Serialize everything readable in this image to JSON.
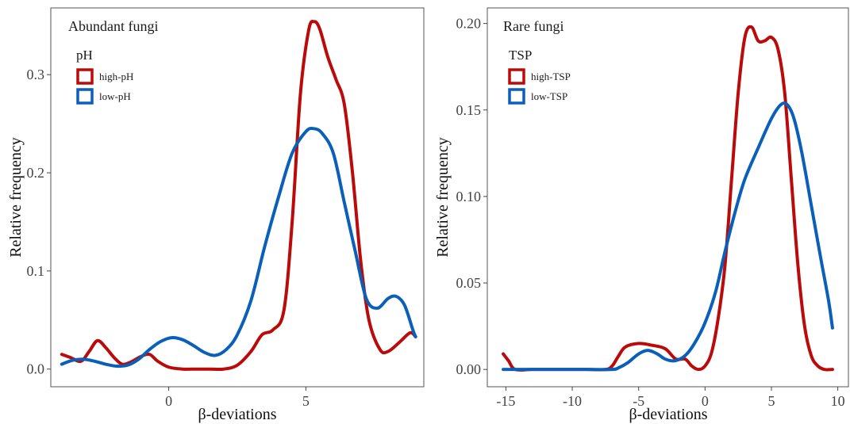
{
  "colors": {
    "series_a": "#bb0a0a",
    "series_b": "#0a5fb8",
    "panel_border": "#555555",
    "tick": "#444444"
  },
  "chart_data": [
    {
      "type": "line",
      "title": "Abundant fungi",
      "xlabel": "β-deviations",
      "ylabel": "Relative frequency",
      "xlim": [
        -4.3,
        9.3
      ],
      "ylim": [
        -0.018,
        0.368
      ],
      "xticks": [
        0,
        5
      ],
      "xtick_labels": [
        "0",
        "5"
      ],
      "yticks": [
        0.0,
        0.1,
        0.2,
        0.3
      ],
      "ytick_labels": [
        "0.0",
        "0.1",
        "0.2",
        "0.3"
      ],
      "grid": false,
      "legend": {
        "title": "pH",
        "position": "top-left"
      },
      "series": [
        {
          "name": "high-pH",
          "color": "#bb0a0a",
          "points": [
            [
              -3.9,
              0.015
            ],
            [
              -3.6,
              0.012
            ],
            [
              -3.2,
              0.008
            ],
            [
              -2.9,
              0.018
            ],
            [
              -2.6,
              0.029
            ],
            [
              -2.3,
              0.022
            ],
            [
              -2.0,
              0.012
            ],
            [
              -1.7,
              0.005
            ],
            [
              -1.4,
              0.007
            ],
            [
              -1.0,
              0.013
            ],
            [
              -0.7,
              0.015
            ],
            [
              -0.4,
              0.008
            ],
            [
              0.0,
              0.002
            ],
            [
              0.5,
              0.0
            ],
            [
              1.0,
              0.0
            ],
            [
              1.5,
              0.0
            ],
            [
              2.0,
              0.0
            ],
            [
              2.5,
              0.004
            ],
            [
              3.0,
              0.018
            ],
            [
              3.4,
              0.035
            ],
            [
              3.8,
              0.04
            ],
            [
              4.2,
              0.06
            ],
            [
              4.5,
              0.15
            ],
            [
              4.8,
              0.28
            ],
            [
              5.1,
              0.345
            ],
            [
              5.3,
              0.354
            ],
            [
              5.5,
              0.347
            ],
            [
              5.8,
              0.318
            ],
            [
              6.1,
              0.295
            ],
            [
              6.4,
              0.27
            ],
            [
              6.7,
              0.2
            ],
            [
              7.0,
              0.11
            ],
            [
              7.3,
              0.05
            ],
            [
              7.7,
              0.02
            ],
            [
              8.0,
              0.018
            ],
            [
              8.4,
              0.027
            ],
            [
              8.8,
              0.037
            ],
            [
              9.0,
              0.033
            ]
          ]
        },
        {
          "name": "low-pH",
          "color": "#0a5fb8",
          "points": [
            [
              -3.9,
              0.005
            ],
            [
              -3.5,
              0.009
            ],
            [
              -3.1,
              0.01
            ],
            [
              -2.7,
              0.008
            ],
            [
              -2.3,
              0.005
            ],
            [
              -1.9,
              0.003
            ],
            [
              -1.5,
              0.004
            ],
            [
              -1.1,
              0.01
            ],
            [
              -0.7,
              0.02
            ],
            [
              -0.3,
              0.028
            ],
            [
              0.1,
              0.032
            ],
            [
              0.5,
              0.03
            ],
            [
              0.9,
              0.024
            ],
            [
              1.3,
              0.017
            ],
            [
              1.7,
              0.014
            ],
            [
              2.1,
              0.02
            ],
            [
              2.5,
              0.035
            ],
            [
              3.0,
              0.07
            ],
            [
              3.5,
              0.125
            ],
            [
              4.0,
              0.175
            ],
            [
              4.5,
              0.22
            ],
            [
              5.0,
              0.242
            ],
            [
              5.3,
              0.245
            ],
            [
              5.6,
              0.24
            ],
            [
              6.0,
              0.22
            ],
            [
              6.4,
              0.17
            ],
            [
              6.8,
              0.12
            ],
            [
              7.2,
              0.072
            ],
            [
              7.6,
              0.062
            ],
            [
              8.0,
              0.072
            ],
            [
              8.3,
              0.074
            ],
            [
              8.6,
              0.065
            ],
            [
              8.9,
              0.04
            ],
            [
              9.0,
              0.033
            ]
          ]
        }
      ]
    },
    {
      "type": "line",
      "title": "Rare fungi",
      "xlabel": "β-deviations",
      "ylabel": "Relative frequency",
      "xlim": [
        -16.4,
        10.8
      ],
      "ylim": [
        -0.01,
        0.209
      ],
      "xticks": [
        -15,
        -10,
        -5,
        0,
        5,
        10
      ],
      "xtick_labels": [
        "-15",
        "-10",
        "-5",
        "0",
        "5",
        "10"
      ],
      "yticks": [
        0.0,
        0.05,
        0.1,
        0.15,
        0.2
      ],
      "ytick_labels": [
        "0.00",
        "0.05",
        "0.10",
        "0.15",
        "0.20"
      ],
      "grid": false,
      "legend": {
        "title": "TSP",
        "position": "top-left"
      },
      "series": [
        {
          "name": "high-TSP",
          "color": "#bb0a0a",
          "points": [
            [
              -15.2,
              0.009
            ],
            [
              -14.8,
              0.005
            ],
            [
              -14.3,
              0.0
            ],
            [
              -13.0,
              0.0
            ],
            [
              -11.0,
              0.0
            ],
            [
              -9.0,
              0.0
            ],
            [
              -7.5,
              0.0
            ],
            [
              -7.0,
              0.002
            ],
            [
              -6.5,
              0.008
            ],
            [
              -6.0,
              0.013
            ],
            [
              -5.0,
              0.015
            ],
            [
              -4.0,
              0.014
            ],
            [
              -3.0,
              0.012
            ],
            [
              -2.2,
              0.006
            ],
            [
              -1.5,
              0.006
            ],
            [
              -1.0,
              0.002
            ],
            [
              -0.5,
              0.0
            ],
            [
              0.0,
              0.002
            ],
            [
              0.5,
              0.01
            ],
            [
              1.0,
              0.03
            ],
            [
              1.5,
              0.06
            ],
            [
              2.0,
              0.11
            ],
            [
              2.5,
              0.16
            ],
            [
              3.0,
              0.192
            ],
            [
              3.5,
              0.198
            ],
            [
              4.0,
              0.19
            ],
            [
              4.5,
              0.19
            ],
            [
              5.0,
              0.192
            ],
            [
              5.5,
              0.185
            ],
            [
              6.0,
              0.16
            ],
            [
              6.5,
              0.11
            ],
            [
              7.0,
              0.06
            ],
            [
              7.5,
              0.025
            ],
            [
              8.0,
              0.008
            ],
            [
              8.5,
              0.002
            ],
            [
              9.0,
              0.0
            ],
            [
              9.6,
              0.0
            ]
          ]
        },
        {
          "name": "low-TSP",
          "color": "#0a5fb8",
          "points": [
            [
              -15.2,
              0.0
            ],
            [
              -13.0,
              0.0
            ],
            [
              -11.0,
              0.0
            ],
            [
              -9.0,
              0.0
            ],
            [
              -7.0,
              0.0
            ],
            [
              -6.5,
              0.001
            ],
            [
              -5.8,
              0.004
            ],
            [
              -5.0,
              0.009
            ],
            [
              -4.3,
              0.011
            ],
            [
              -3.6,
              0.009
            ],
            [
              -3.0,
              0.006
            ],
            [
              -2.3,
              0.005
            ],
            [
              -1.5,
              0.008
            ],
            [
              -0.8,
              0.015
            ],
            [
              0.0,
              0.027
            ],
            [
              0.8,
              0.045
            ],
            [
              1.5,
              0.068
            ],
            [
              2.3,
              0.092
            ],
            [
              3.0,
              0.11
            ],
            [
              4.0,
              0.128
            ],
            [
              5.0,
              0.145
            ],
            [
              5.7,
              0.153
            ],
            [
              6.2,
              0.153
            ],
            [
              6.7,
              0.145
            ],
            [
              7.3,
              0.125
            ],
            [
              8.0,
              0.095
            ],
            [
              8.7,
              0.065
            ],
            [
              9.3,
              0.04
            ],
            [
              9.6,
              0.024
            ]
          ]
        }
      ]
    }
  ]
}
